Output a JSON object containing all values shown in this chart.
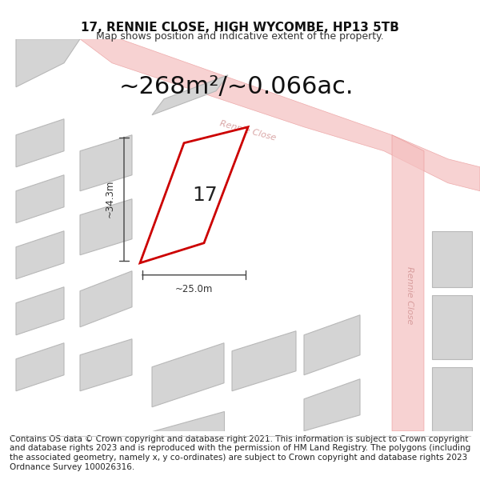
{
  "title": "17, RENNIE CLOSE, HIGH WYCOMBE, HP13 5TB",
  "subtitle": "Map shows position and indicative extent of the property.",
  "area_text": "~268m²/~0.066ac.",
  "dim_width": "~25.0m",
  "dim_height": "~34.3m",
  "label_number": "17",
  "footer": "Contains OS data © Crown copyright and database right 2021. This information is subject to Crown copyright and database rights 2023 and is reproduced with the permission of HM Land Registry. The polygons (including the associated geometry, namely x, y co-ordinates) are subject to Crown copyright and database rights 2023 Ordnance Survey 100026316.",
  "bg_color": "#f5f5f5",
  "map_bg": "#f0f0f0",
  "road_color": "#e8a0a0",
  "road_label_color": "#c8a0a0",
  "highlight_color": "#cc0000",
  "plot_fill": "#ffffff",
  "block_fill": "#d8d8d8",
  "block_stroke": "#c0c0c0",
  "title_fontsize": 11,
  "subtitle_fontsize": 9,
  "area_fontsize": 22,
  "label_fontsize": 18,
  "footer_fontsize": 7.5
}
